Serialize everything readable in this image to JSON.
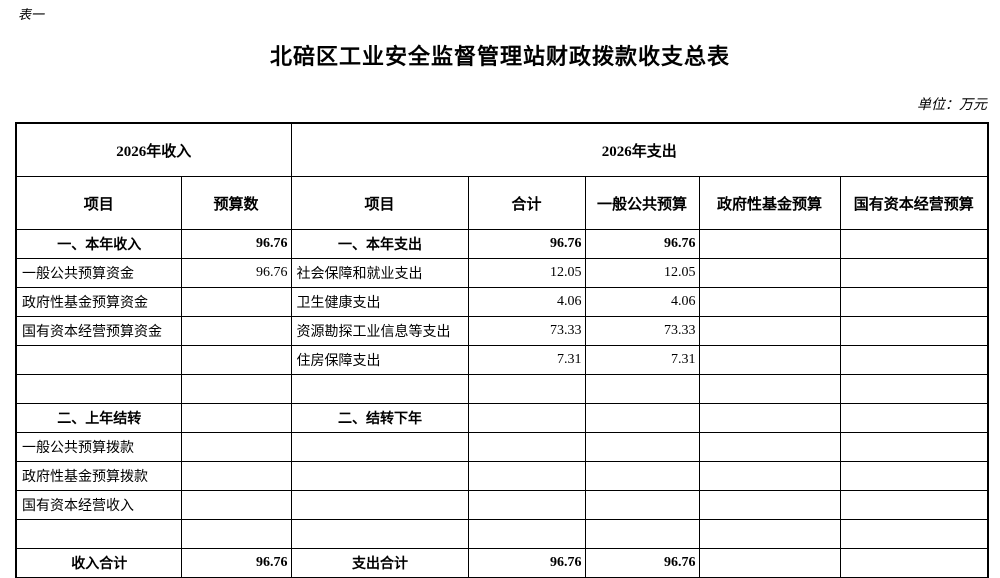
{
  "page": {
    "corner_label": "表一",
    "title": "北碚区工业安全监督管理站财政拨款收支总表",
    "unit_label": "单位：万元"
  },
  "table": {
    "header": {
      "income_group": "2026年收入",
      "expense_group": "2026年支出",
      "columns": [
        "项目",
        "预算数",
        "项目",
        "合计",
        "一般公共预算",
        "政府性基金预算",
        "国有资本经营预算"
      ]
    },
    "rows": [
      {
        "bold": true,
        "cells": [
          "一、本年收入",
          "96.76",
          "一、本年支出",
          "96.76",
          "96.76",
          "",
          ""
        ]
      },
      {
        "bold": false,
        "cells": [
          "一般公共预算资金",
          "96.76",
          "社会保障和就业支出",
          "12.05",
          "12.05",
          "",
          ""
        ]
      },
      {
        "bold": false,
        "cells": [
          "政府性基金预算资金",
          "",
          "卫生健康支出",
          "4.06",
          "4.06",
          "",
          ""
        ]
      },
      {
        "bold": false,
        "cells": [
          "国有资本经营预算资金",
          "",
          "资源勘探工业信息等支出",
          "73.33",
          "73.33",
          "",
          ""
        ]
      },
      {
        "bold": false,
        "cells": [
          "",
          "",
          "住房保障支出",
          "7.31",
          "7.31",
          "",
          ""
        ]
      },
      {
        "bold": false,
        "cells": [
          "",
          "",
          "",
          "",
          "",
          "",
          ""
        ]
      },
      {
        "bold": true,
        "cells": [
          "二、上年结转",
          "",
          "二、结转下年",
          "",
          "",
          "",
          ""
        ]
      },
      {
        "bold": false,
        "cells": [
          "一般公共预算拨款",
          "",
          "",
          "",
          "",
          "",
          ""
        ]
      },
      {
        "bold": false,
        "cells": [
          "政府性基金预算拨款",
          "",
          "",
          "",
          "",
          "",
          ""
        ]
      },
      {
        "bold": false,
        "cells": [
          "国有资本经营收入",
          "",
          "",
          "",
          "",
          "",
          ""
        ]
      },
      {
        "bold": false,
        "cells": [
          "",
          "",
          "",
          "",
          "",
          "",
          ""
        ]
      },
      {
        "bold": true,
        "cells": [
          "收入合计",
          "96.76",
          "支出合计",
          "96.76",
          "96.76",
          "",
          ""
        ]
      }
    ]
  }
}
